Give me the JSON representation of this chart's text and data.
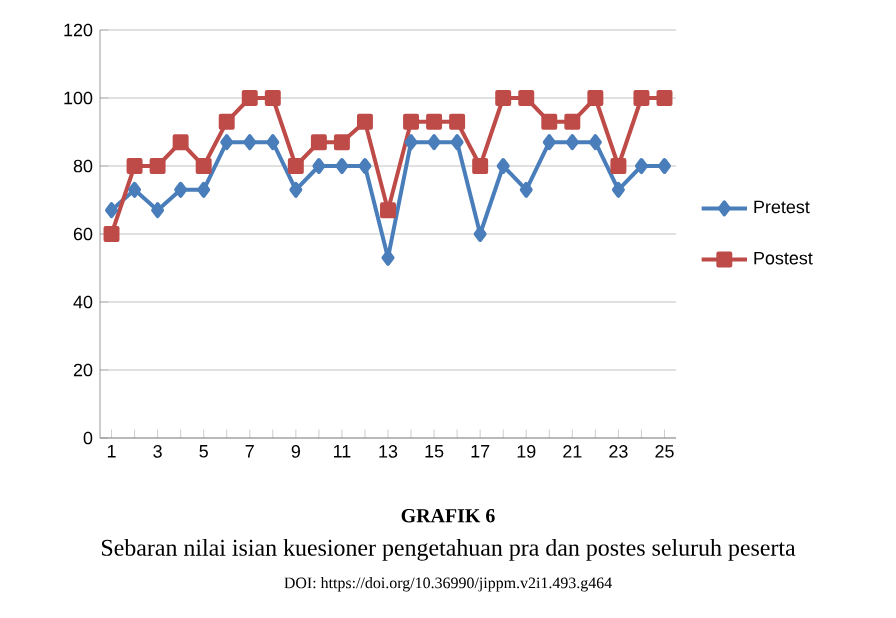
{
  "chart_data": {
    "type": "line",
    "title": "GRAFIK 6",
    "subtitle": "Sebaran nilai isian kuesioner pengetahuan pra dan postes seluruh peserta",
    "annotations": [
      "DOI: https://doi.org/10.36990/jippm.v2i1.493.g464"
    ],
    "categories": [
      "1",
      null,
      "3",
      null,
      "5",
      null,
      "7",
      null,
      "9",
      null,
      "11",
      null,
      "13",
      null,
      "15",
      null,
      "17",
      null,
      "19",
      null,
      "21",
      null,
      "23",
      null,
      "25"
    ],
    "series": [
      {
        "name": "Pretest",
        "color": "#4a7ebb",
        "marker": "diamond",
        "values": [
          67,
          73,
          67,
          73,
          73,
          87,
          87,
          87,
          73,
          80,
          80,
          80,
          53,
          87,
          87,
          87,
          60,
          80,
          73,
          87,
          87,
          87,
          73,
          80,
          80
        ]
      },
      {
        "name": "Postest",
        "color": "#be4b48",
        "marker": "square",
        "values": [
          60,
          80,
          80,
          87,
          80,
          93,
          100,
          100,
          80,
          87,
          87,
          93,
          67,
          93,
          93,
          93,
          80,
          100,
          100,
          93,
          93,
          100,
          80,
          100,
          100
        ]
      }
    ],
    "ylim": [
      0,
      120
    ],
    "yticks": [
      0,
      20,
      40,
      60,
      80,
      100,
      120
    ],
    "grid": "y",
    "legend": "right"
  }
}
